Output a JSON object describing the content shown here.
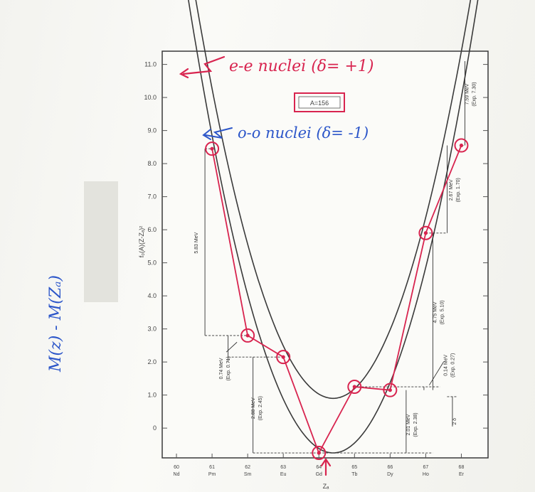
{
  "chart_data": {
    "type": "scatter",
    "box_label": "A=156",
    "ylabel": "f₀(A)(Z-Zₐ)²",
    "xlabel": "Zₐ",
    "ylim": [
      -0.9,
      11.4
    ],
    "y_ticks": [
      "11.0",
      "10.0",
      "9.0",
      "8.0",
      "7.0",
      "6.0",
      "5.0",
      "4.0",
      "3.0",
      "2.0",
      "1.0",
      "0"
    ],
    "y_tick_values": [
      11,
      10,
      9,
      8,
      7,
      6,
      5,
      4,
      3,
      2,
      1,
      0
    ],
    "x_ticks": [
      {
        "z": 60,
        "num": "60",
        "sym": "Nd"
      },
      {
        "z": 61,
        "num": "61",
        "sym": "Pm"
      },
      {
        "z": 62,
        "num": "62",
        "sym": "Sm"
      },
      {
        "z": 63,
        "num": "63",
        "sym": "Eu"
      },
      {
        "z": 64,
        "num": "64",
        "sym": "Gd"
      },
      {
        "z": 65,
        "num": "65",
        "sym": "Tb"
      },
      {
        "z": 66,
        "num": "66",
        "sym": "Dy"
      },
      {
        "z": 67,
        "num": "67",
        "sym": "Ho"
      },
      {
        "z": 68,
        "num": "68",
        "sym": "Er"
      }
    ],
    "zmin": 59.6,
    "zmax": 68.75,
    "parabolas": [
      {
        "name": "e-e",
        "z0": 64.4,
        "a": 0.83,
        "c": -0.75
      },
      {
        "name": "o-o",
        "z0": 64.4,
        "a": 0.81,
        "c": 0.9
      }
    ],
    "series": [
      {
        "name": "e-e",
        "points": [
          [
            62,
            2.8
          ],
          [
            64,
            -0.75
          ],
          [
            66,
            1.15
          ],
          [
            68,
            8.55
          ]
        ]
      },
      {
        "name": "o-o",
        "points": [
          [
            61,
            8.45
          ],
          [
            63,
            2.15
          ],
          [
            65,
            1.25
          ],
          [
            67,
            5.9
          ]
        ]
      }
    ],
    "gap_labels": [
      {
        "text": "5.83 MeV",
        "z": 60.6,
        "y": 5.6
      },
      {
        "text": "0.74 MeV",
        "z": 61.3,
        "y": 1.8
      },
      {
        "text": "(Exp. 0.71)",
        "z": 61.5,
        "y": 1.8
      },
      {
        "text": "2.88 MeV",
        "z": 62.2,
        "y": 0.6
      },
      {
        "text": "(Exp. 2.45)",
        "z": 62.4,
        "y": 0.6
      },
      {
        "text": "2.01 MeV",
        "z": 66.55,
        "y": 0.1
      },
      {
        "text": "(Exp. 2.38)",
        "z": 66.75,
        "y": 0.1
      },
      {
        "text": "2 δ",
        "z": 67.85,
        "y": 0.2
      },
      {
        "text": "4.75 MeV",
        "z": 67.3,
        "y": 3.5
      },
      {
        "text": "(Exp. 5.10)",
        "z": 67.5,
        "y": 3.5
      },
      {
        "text": "0.14 MeV",
        "z": 67.6,
        "y": 1.9
      },
      {
        "text": "(Exp. 0.27)",
        "z": 67.8,
        "y": 1.9
      },
      {
        "text": "2.67 MeV",
        "z": 67.75,
        "y": 7.2
      },
      {
        "text": "(Exp. 1.70)",
        "z": 67.95,
        "y": 7.2
      },
      {
        "text": "7.59 MeV",
        "z": 68.2,
        "y": 10.1
      },
      {
        "text": "(Exp. 7.30)",
        "z": 68.4,
        "y": 10.1
      }
    ]
  },
  "annotations": {
    "ee_label": "e-e nuclei (δ= +1)",
    "oo_label": "o-o nuclei (δ= -1)",
    "side_label": "M(z) - M(Zₐ)"
  },
  "colors": {
    "curve": "#3a3a3a",
    "red": "#d8244f",
    "blue": "#2c56c9"
  }
}
